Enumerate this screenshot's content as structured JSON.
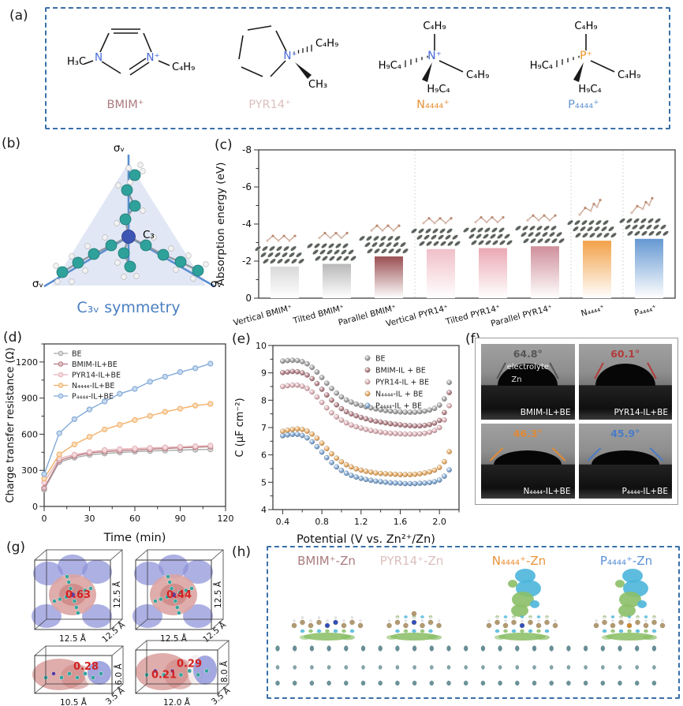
{
  "panels": {
    "a": {
      "label": "(a)",
      "n_color": "#4768d8",
      "p_color": "#ef9420",
      "bmim": {
        "left": "H₃C",
        "right": "C₄H₉",
        "n_left": "N",
        "n_right": "N⁺",
        "name": "BMIM⁺",
        "color": "#ab7b7e"
      },
      "pyr": {
        "top_right": "C₄H₉",
        "bottom_right": "CH₃",
        "n": "N⁺",
        "name": "PYR14⁺",
        "color": "#dcbfbe"
      },
      "n4444": {
        "center": "N⁺",
        "top": "C₄H₉",
        "right": "C₄H₉",
        "left": "H₉C₄",
        "bottom": "H₉C₄",
        "name": "N₄₄₄₄⁺",
        "color": "#e8923a"
      },
      "p4444": {
        "center": "P⁺",
        "top": "C₄H₉",
        "right": "C₄H₉",
        "left": "H₉C₄",
        "bottom": "H₉C₄",
        "name": "P₄₄₄₄⁺",
        "color": "#6496d2"
      }
    },
    "b": {
      "label": "(b)",
      "sigma": "σᵥ",
      "c3": "C₃",
      "caption": "C₃ᵥ symmetry",
      "caption_color": "#4a7fc1"
    },
    "c": {
      "label": "(c)"
    },
    "d": {
      "label": "(d)"
    },
    "e": {
      "label": "(e)"
    },
    "f": {
      "label": "(f)",
      "cells": [
        {
          "angle": "64.8°",
          "color": "#555555",
          "name": "BMIM-IL+BE",
          "extra_top": "electrolyte",
          "extra_bottom": "Zn"
        },
        {
          "angle": "60.1°",
          "color": "#b23b3b",
          "name": "PYR14-IL+BE",
          "extra_top": "",
          "extra_bottom": ""
        },
        {
          "angle": "46.3°",
          "color": "#e08a36",
          "name": "N₄₄₄₄-IL+BE",
          "extra_top": "",
          "extra_bottom": ""
        },
        {
          "angle": "45.9°",
          "color": "#4a7cc7",
          "name": "P₄₄₄₄-IL+BE",
          "extra_top": "",
          "extra_bottom": ""
        }
      ]
    },
    "g": {
      "label": "(g)",
      "value_color": "#d32222",
      "boxes": [
        {
          "value": "0.63",
          "width": "12.5 Å",
          "height": "12.5 Å",
          "depth": "12.5 Å"
        },
        {
          "value": "0.44",
          "width": "12.5 Å",
          "height": "12.5 Å",
          "depth": "12.5 Å"
        },
        {
          "value": "0.28",
          "width": "10.5 Å",
          "height": "6.0 Å",
          "depth": "3.5 Å"
        },
        {
          "value": "0.29",
          "value2": "0.21",
          "width": "12.0 Å",
          "height": "8.0 Å",
          "depth": "3.5 Å"
        }
      ]
    },
    "h": {
      "label": "(h)",
      "items": [
        {
          "label": "BMIM⁺-Zn",
          "color": "#ab7b7e"
        },
        {
          "label": "PYR14⁺-Zn",
          "color": "#dcbfbe"
        },
        {
          "label": "N₄₄₄₄⁺-Zn",
          "color": "#e8923a"
        },
        {
          "label": "P₄₄₄₄⁺-Zn",
          "color": "#5b8fd6"
        }
      ]
    }
  },
  "chart_data": [
    {
      "id": "c",
      "type": "bar",
      "ylabel": "Absorption energy (eV)",
      "categories": [
        "Vertical BMIM⁺",
        "Tilted BMIM⁺",
        "Parallel BMIM⁺",
        "Vertical PYR14⁺",
        "Tilted PYR14⁺",
        "Parallel PYR14⁺",
        "N₄₄₄₄⁺",
        "P₄₄₄₄⁺"
      ],
      "values": [
        -1.7,
        -1.85,
        -2.25,
        -2.65,
        -2.7,
        -2.8,
        -3.1,
        -3.2
      ],
      "bar_colors": [
        "#d9d9d9",
        "#b8b8b8",
        "#9a4f52",
        "#f0bfc8",
        "#eba9b4",
        "#cf8f9b",
        "#f2a149",
        "#6598d2"
      ],
      "ylim": [
        0,
        -8
      ],
      "yticks": [
        0,
        -2,
        -4,
        -6,
        -8
      ],
      "group_separators_after": [
        3,
        6,
        7
      ],
      "grid": false
    },
    {
      "id": "d",
      "type": "line",
      "xlabel": "Time (min)",
      "ylabel": "Charge transfer resistance (Ω)",
      "x": [
        0,
        10,
        20,
        30,
        40,
        50,
        60,
        70,
        80,
        90,
        100,
        110
      ],
      "series": [
        {
          "name": "BE",
          "color": "#a9a9a9",
          "values": [
            140,
            368,
            405,
            428,
            440,
            448,
            455,
            460,
            464,
            468,
            471,
            474
          ]
        },
        {
          "name": "BMIM-IL+BE",
          "color": "#b5787f",
          "values": [
            152,
            382,
            418,
            444,
            455,
            463,
            469,
            475,
            481,
            487,
            492,
            497
          ]
        },
        {
          "name": "PYR14-IL+BE",
          "color": "#e4b0b6",
          "values": [
            200,
            400,
            430,
            452,
            468,
            476,
            481,
            486,
            490,
            495,
            500,
            505
          ]
        },
        {
          "name": "N₄₄₄₄-IL+BE",
          "color": "#f2b169",
          "values": [
            232,
            432,
            515,
            578,
            640,
            678,
            718,
            752,
            786,
            812,
            838,
            852
          ]
        },
        {
          "name": "P₄₄₄₄-IL+BE",
          "color": "#82aad8",
          "values": [
            268,
            608,
            725,
            806,
            872,
            936,
            976,
            1036,
            1078,
            1116,
            1148,
            1186
          ]
        }
      ],
      "xlim": [
        0,
        120
      ],
      "ylim": [
        0,
        1350
      ],
      "xticks": [
        0,
        30,
        60,
        90,
        120
      ],
      "yticks": [
        0,
        300,
        600,
        900,
        1200
      ],
      "legend_position": "top-left",
      "grid": false
    },
    {
      "id": "e",
      "type": "scatter",
      "xlabel": "Potential (V vs. Zn²⁺/Zn)",
      "ylabel": "C (μF cm⁻²)",
      "x_start": 0.4,
      "x_step": 0.05,
      "series": [
        {
          "name": "BE",
          "color": "#9a9a9a",
          "values": [
            9.43,
            9.45,
            9.46,
            9.45,
            9.41,
            9.33,
            9.2,
            9.03,
            8.83,
            8.62,
            8.43,
            8.26,
            8.12,
            8.01,
            7.93,
            7.86,
            7.81,
            7.76,
            7.72,
            7.68,
            7.65,
            7.62,
            7.6,
            7.58,
            7.57,
            7.56,
            7.56,
            7.56,
            7.58,
            7.6,
            7.64,
            7.7,
            7.82,
            8.05,
            8.65
          ]
        },
        {
          "name": "BMIM-IL + BE",
          "color": "#b0767c",
          "values": [
            9.01,
            9.03,
            9.05,
            9.04,
            9.0,
            8.92,
            8.79,
            8.61,
            8.4,
            8.19,
            8.0,
            7.83,
            7.69,
            7.58,
            7.5,
            7.43,
            7.37,
            7.32,
            7.27,
            7.23,
            7.2,
            7.17,
            7.14,
            7.12,
            7.1,
            7.08,
            7.07,
            7.06,
            7.06,
            7.08,
            7.11,
            7.16,
            7.26,
            7.55,
            8.28
          ]
        },
        {
          "name": "PYR14-IL + BE",
          "color": "#e3aeb4",
          "values": [
            8.5,
            8.53,
            8.55,
            8.55,
            8.51,
            8.43,
            8.3,
            8.12,
            7.92,
            7.72,
            7.54,
            7.39,
            7.27,
            7.17,
            7.09,
            7.03,
            6.98,
            6.93,
            6.89,
            6.86,
            6.83,
            6.81,
            6.79,
            6.78,
            6.77,
            6.76,
            6.76,
            6.76,
            6.77,
            6.79,
            6.83,
            6.89,
            7.0,
            7.28,
            7.8
          ]
        },
        {
          "name": "N₄₄₄₄-IL + BE",
          "color": "#f0a955",
          "values": [
            6.86,
            6.9,
            6.93,
            6.95,
            6.93,
            6.87,
            6.76,
            6.61,
            6.43,
            6.23,
            6.04,
            5.88,
            5.75,
            5.64,
            5.56,
            5.49,
            5.44,
            5.4,
            5.37,
            5.34,
            5.32,
            5.31,
            5.3,
            5.29,
            5.28,
            5.28,
            5.28,
            5.29,
            5.31,
            5.34,
            5.38,
            5.44,
            5.54,
            5.75,
            6.12
          ]
        },
        {
          "name": "P₄₄₄₄-IL + BE",
          "color": "#74a3d6",
          "values": [
            6.7,
            6.73,
            6.75,
            6.75,
            6.71,
            6.62,
            6.48,
            6.3,
            6.1,
            5.9,
            5.72,
            5.56,
            5.43,
            5.33,
            5.25,
            5.19,
            5.14,
            5.1,
            5.07,
            5.04,
            5.02,
            5.0,
            4.98,
            4.97,
            4.96,
            4.95,
            4.95,
            4.95,
            4.96,
            4.97,
            4.99,
            5.02,
            5.08,
            5.22,
            5.45
          ]
        }
      ],
      "xlim": [
        0.3,
        2.2
      ],
      "ylim": [
        4,
        10
      ],
      "xticks": [
        0.4,
        0.8,
        1.2,
        1.6,
        2.0
      ],
      "yticks": [
        4,
        5,
        6,
        7,
        8,
        9,
        10
      ],
      "legend_position": "top-right",
      "grid": false
    }
  ]
}
